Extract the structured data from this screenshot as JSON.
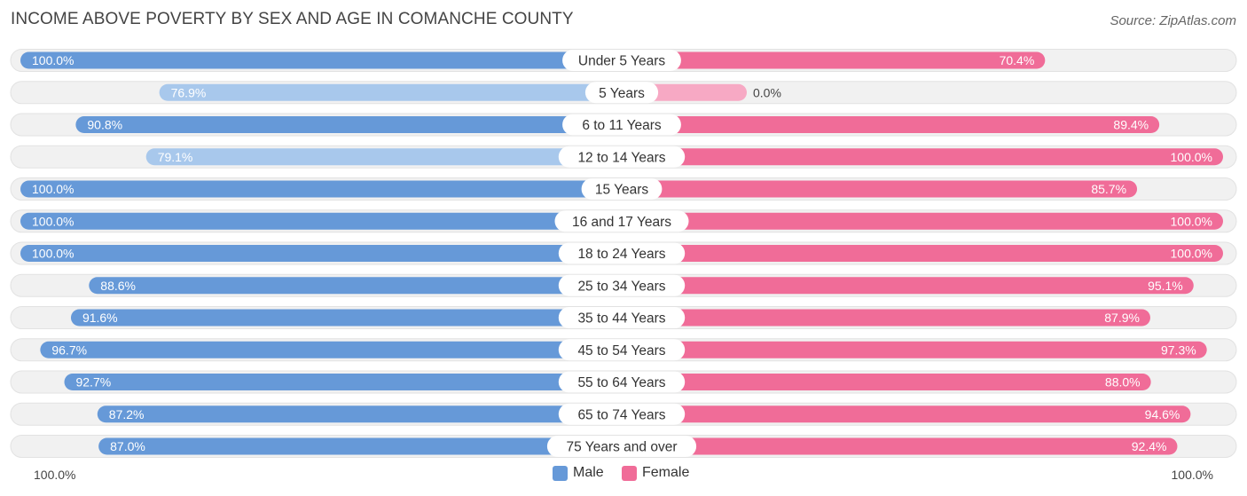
{
  "chart_data": {
    "type": "bar",
    "orientation": "horizontal-diverging",
    "title": "INCOME ABOVE POVERTY BY SEX AND AGE IN COMANCHE COUNTY",
    "source": "Source: ZipAtlas.com",
    "categories": [
      "Under 5 Years",
      "5 Years",
      "6 to 11 Years",
      "12 to 14 Years",
      "15 Years",
      "16 and 17 Years",
      "18 to 24 Years",
      "25 to 34 Years",
      "35 to 44 Years",
      "45 to 54 Years",
      "55 to 64 Years",
      "65 to 74 Years",
      "75 Years and over"
    ],
    "series": [
      {
        "name": "Male",
        "values": [
          100.0,
          76.9,
          90.8,
          79.1,
          100.0,
          100.0,
          100.0,
          88.6,
          91.6,
          96.7,
          92.7,
          87.2,
          87.0
        ],
        "labels": [
          "100.0%",
          "76.9%",
          "90.8%",
          "79.1%",
          "100.0%",
          "100.0%",
          "100.0%",
          "88.6%",
          "91.6%",
          "96.7%",
          "92.7%",
          "87.2%",
          "87.0%"
        ]
      },
      {
        "name": "Female",
        "values": [
          70.4,
          0.0,
          89.4,
          100.0,
          85.7,
          100.0,
          100.0,
          95.1,
          87.9,
          97.3,
          88.0,
          94.6,
          92.4
        ],
        "labels": [
          "70.4%",
          "0.0%",
          "89.4%",
          "100.0%",
          "85.7%",
          "100.0%",
          "100.0%",
          "95.1%",
          "87.9%",
          "97.3%",
          "88.0%",
          "94.6%",
          "92.4%"
        ]
      }
    ],
    "xlim": [
      0,
      100
    ],
    "axis_left_label": "100.0%",
    "axis_right_label": "100.0%",
    "legend": {
      "male": "Male",
      "female": "Female"
    }
  },
  "colors": {
    "male_strong": "#6699d8",
    "male_light": "#a8c8ec",
    "female_strong": "#f06c98",
    "female_light": "#f7a9c4",
    "track": "#f1f1f1"
  }
}
